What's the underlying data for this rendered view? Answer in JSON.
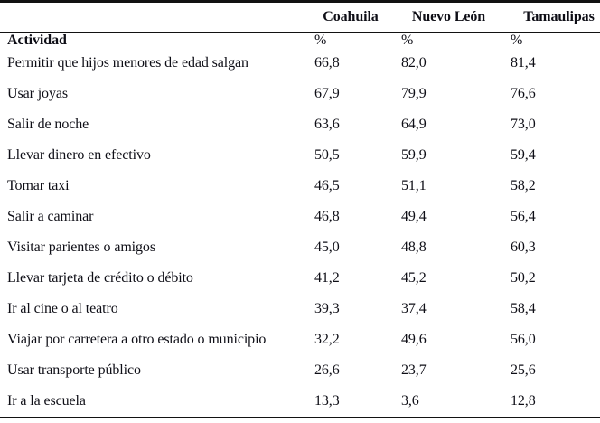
{
  "table": {
    "state_columns": [
      "Coahuila",
      "Nuevo León",
      "Tamaulipas"
    ],
    "header": {
      "activity_label": "Actividad",
      "unit_labels": [
        "%",
        "%",
        "%"
      ]
    },
    "rows": [
      {
        "activity": "Permitir que hijos menores de edad salgan",
        "values": [
          "66,8",
          "82,0",
          "81,4"
        ]
      },
      {
        "activity": "Usar joyas",
        "values": [
          "67,9",
          "79,9",
          "76,6"
        ]
      },
      {
        "activity": "Salir de noche",
        "values": [
          "63,6",
          "64,9",
          "73,0"
        ]
      },
      {
        "activity": "Llevar dinero en efectivo",
        "values": [
          "50,5",
          "59,9",
          "59,4"
        ]
      },
      {
        "activity": "Tomar taxi",
        "values": [
          "46,5",
          "51,1",
          "58,2"
        ]
      },
      {
        "activity": "Salir a caminar",
        "values": [
          "46,8",
          "49,4",
          "56,4"
        ]
      },
      {
        "activity": "Visitar parientes o amigos",
        "values": [
          "45,0",
          "48,8",
          "60,3"
        ]
      },
      {
        "activity": "Llevar tarjeta de crédito o débito",
        "values": [
          "41,2",
          "45,2",
          "50,2"
        ]
      },
      {
        "activity": "Ir al cine o al teatro",
        "values": [
          "39,3",
          "37,4",
          "58,4"
        ]
      },
      {
        "activity": "Viajar por carretera a otro estado o municipio",
        "values": [
          "32,2",
          "49,6",
          "56,0"
        ]
      },
      {
        "activity": "Usar transporte público",
        "values": [
          "26,6",
          "23,7",
          "25,6"
        ]
      },
      {
        "activity": "Ir a la escuela",
        "values": [
          "13,3",
          "3,6",
          "12,8"
        ]
      }
    ],
    "colors": {
      "text": "#0e0e16",
      "rule": "#121212",
      "background": "#ffffff"
    }
  }
}
